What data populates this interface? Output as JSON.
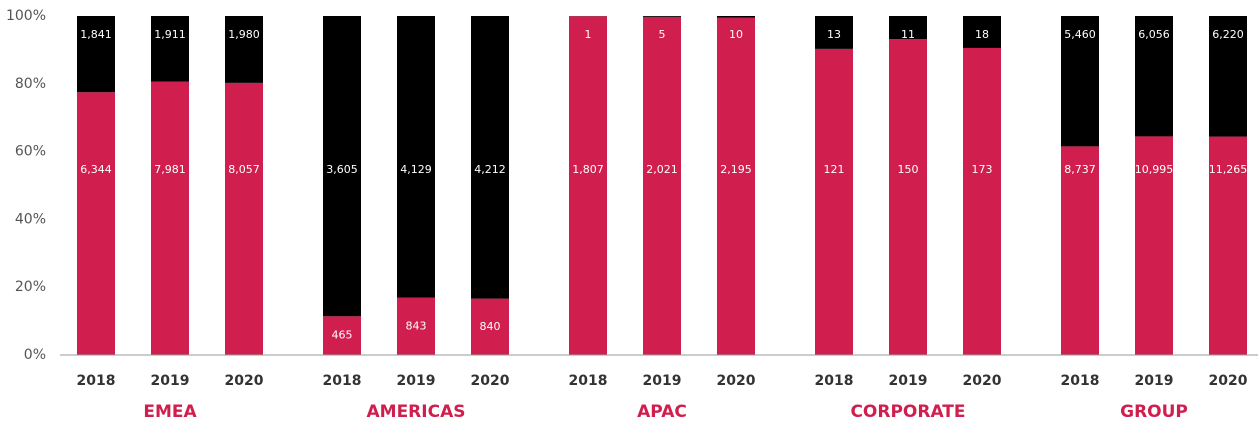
{
  "chart_data": {
    "type": "bar",
    "stacking": "percent",
    "categories": [
      "2018",
      "2019",
      "2020",
      "2018",
      "2019",
      "2020",
      "2018",
      "2019",
      "2020",
      "2018",
      "2019",
      "2020",
      "2018",
      "2019",
      "2020"
    ],
    "groups": [
      "EMEA",
      "AMERICAS",
      "APAC",
      "CORPORATE",
      "GROUP"
    ],
    "series": [
      {
        "color": "#d01f4e",
        "values": [
          6344,
          7981,
          8057,
          465,
          843,
          840,
          1807,
          2021,
          2195,
          121,
          150,
          173,
          8737,
          10995,
          11265
        ],
        "value_labels": [
          "6,344",
          "7,981",
          "8,057",
          "465",
          "843",
          "840",
          "1,807",
          "2,021",
          "2,195",
          "121",
          "150",
          "173",
          "8,737",
          "10,995",
          "11,265"
        ]
      },
      {
        "color": "#000000",
        "values": [
          1841,
          1911,
          1980,
          3605,
          4129,
          4212,
          1,
          5,
          10,
          13,
          11,
          18,
          5460,
          6056,
          6220
        ],
        "value_labels": [
          "1,841",
          "1,911",
          "1,980",
          "3,605",
          "4,129",
          "4,212",
          "1",
          "5",
          "10",
          "13",
          "11",
          "18",
          "5,460",
          "6,056",
          "6,220"
        ]
      }
    ],
    "ylim": [
      0,
      100
    ],
    "yticks": [
      {
        "value": 0,
        "label": "0%"
      },
      {
        "value": 20,
        "label": "20%"
      },
      {
        "value": 40,
        "label": "40%"
      },
      {
        "value": 60,
        "label": "60%"
      },
      {
        "value": 80,
        "label": "80%"
      },
      {
        "value": 100,
        "label": "100%"
      }
    ],
    "grid": false
  }
}
